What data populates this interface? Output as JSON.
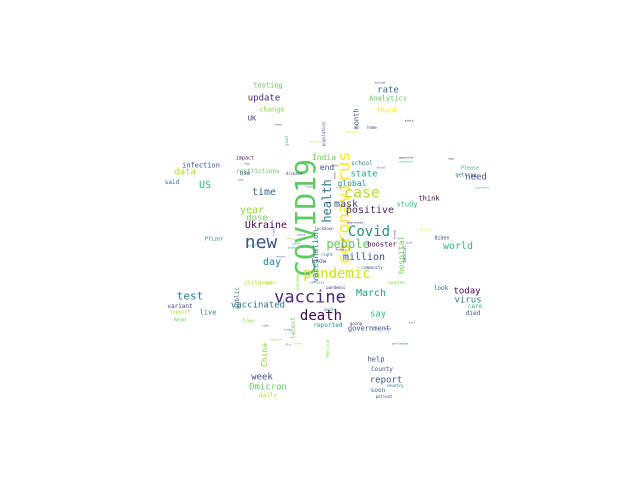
{
  "palette": {
    "purple": "#482878",
    "dark_purple": "#440154",
    "blue": "#3b528b",
    "teal": "#21918c",
    "teal_light": "#2a788e",
    "green": "#35b779",
    "lime": "#90d743",
    "yellow": "#fde725",
    "olive": "#b5de2b"
  },
  "words": [
    {
      "text": "COVID19",
      "color": "#5ec962",
      "rot": 270
    },
    {
      "text": "new",
      "color": "#3b528b",
      "rot": 0
    },
    {
      "text": "vaccine",
      "color": "#482878",
      "rot": 0
    },
    {
      "text": "coronavirus",
      "color": "#fde725",
      "rot": 270
    },
    {
      "text": "case",
      "color": "#b5de2b",
      "rot": 0
    },
    {
      "text": "Covid",
      "color": "#21918c",
      "rot": 0
    },
    {
      "text": "pandemic",
      "color": "#d0e11c",
      "rot": 0
    },
    {
      "text": "death",
      "color": "#440154",
      "rot": 0
    },
    {
      "text": "people",
      "color": "#5ec962",
      "rot": 0
    },
    {
      "text": "health",
      "color": "#2a788e",
      "rot": 270
    },
    {
      "text": "mask",
      "color": "#3e4989",
      "rot": 0
    },
    {
      "text": "Ukraine",
      "color": "#440154",
      "rot": 0
    },
    {
      "text": "positive",
      "color": "#482878",
      "rot": 0
    },
    {
      "text": "time",
      "color": "#31688e",
      "rot": 0
    },
    {
      "text": "day",
      "color": "#26828e",
      "rot": 0
    },
    {
      "text": "March",
      "color": "#1f9e89",
      "rot": 0
    },
    {
      "text": "test",
      "color": "#26828e",
      "rot": 0
    },
    {
      "text": "million",
      "color": "#3b528b",
      "rot": 0
    },
    {
      "text": "world",
      "color": "#35b779",
      "rot": 0
    },
    {
      "text": "today",
      "color": "#440154",
      "rot": 0
    },
    {
      "text": "virus",
      "color": "#2a788e",
      "rot": 0
    },
    {
      "text": "year",
      "color": "#90d743",
      "rot": 0
    },
    {
      "text": "dose",
      "color": "#6ece58",
      "rot": 0
    },
    {
      "text": "state",
      "color": "#22a884",
      "rot": 0
    },
    {
      "text": "rate",
      "color": "#31688e",
      "rot": 0
    },
    {
      "text": "update",
      "color": "#482878",
      "rot": 0
    },
    {
      "text": "US",
      "color": "#35b779",
      "rot": 0
    },
    {
      "text": "data",
      "color": "#b5de2b",
      "rot": 0
    },
    {
      "text": "vaccination",
      "color": "#2a788e",
      "rot": 270
    },
    {
      "text": "vaccinated",
      "color": "#2a788e",
      "rot": 0
    },
    {
      "text": "week",
      "color": "#3e4989",
      "rot": 0
    },
    {
      "text": "Omicron",
      "color": "#5ec962",
      "rot": 0
    },
    {
      "text": "China",
      "color": "#90d743",
      "rot": 270
    },
    {
      "text": "need",
      "color": "#3b528b",
      "rot": 0
    },
    {
      "text": "report",
      "color": "#3b528b",
      "rot": 0
    },
    {
      "text": "say",
      "color": "#35b779",
      "rot": 0
    },
    {
      "text": "government",
      "color": "#3e4989",
      "rot": 0
    },
    {
      "text": "booster",
      "color": "#440154",
      "rot": 0
    },
    {
      "text": "hospital",
      "color": "#6ece58",
      "rot": 270
    },
    {
      "text": "global",
      "color": "#21918c",
      "rot": 0
    },
    {
      "text": "end",
      "color": "#3b528b",
      "rot": 0
    },
    {
      "text": "India",
      "color": "#6ece58",
      "rot": 0
    },
    {
      "text": "testing",
      "color": "#6ece58",
      "rot": 0
    },
    {
      "text": "Analytics",
      "color": "#5ec962",
      "rot": 0
    },
    {
      "text": "Thank",
      "color": "#fde725",
      "rot": 0
    },
    {
      "text": "change",
      "color": "#90d743",
      "rot": 0
    },
    {
      "text": "UK",
      "color": "#482878",
      "rot": 0
    },
    {
      "text": "month",
      "color": "#3b528b",
      "rot": 270
    },
    {
      "text": "school",
      "color": "#21918c",
      "rot": 0
    },
    {
      "text": "infection",
      "color": "#3b528b",
      "rot": 0
    },
    {
      "text": "said",
      "color": "#31688e",
      "rot": 0
    },
    {
      "text": "restrictions",
      "color": "#5ec962",
      "rot": 0
    },
    {
      "text": "use",
      "color": "#3e4989",
      "rot": 0
    },
    {
      "text": "study",
      "color": "#35b779",
      "rot": 0
    },
    {
      "text": "think",
      "color": "#440154",
      "rot": 0
    },
    {
      "text": "live",
      "color": "#26828e",
      "rot": 0
    },
    {
      "text": "variant",
      "color": "#3e4989",
      "rot": 0
    },
    {
      "text": "children",
      "color": "#b5de2b",
      "rot": 0
    },
    {
      "text": "latest",
      "color": "#6ece58",
      "rot": 270
    },
    {
      "text": "reported",
      "color": "#21918c",
      "rot": 0
    },
    {
      "text": "look",
      "color": "#31688e",
      "rot": 0
    },
    {
      "text": "care",
      "color": "#35b779",
      "rot": 0
    },
    {
      "text": "died",
      "color": "#3b528b",
      "rot": 0
    },
    {
      "text": "help",
      "color": "#3e4989",
      "rot": 0
    },
    {
      "text": "County",
      "color": "#3b528b",
      "rot": 0
    },
    {
      "text": "soon",
      "color": "#31688e",
      "rot": 0
    },
    {
      "text": "daily",
      "color": "#b5de2b",
      "rot": 0
    },
    {
      "text": "know",
      "color": "#3e4989",
      "rot": 0
    },
    {
      "text": "public",
      "color": "#2a788e",
      "rot": 270
    },
    {
      "text": "Pfizer",
      "color": "#2a788e",
      "rot": 0
    },
    {
      "text": "Biden",
      "color": "#3b528b",
      "rot": 0
    },
    {
      "text": "Please",
      "color": "#35b779",
      "rot": 0
    },
    {
      "text": "getting",
      "color": "#31688e",
      "rot": 0
    },
    {
      "text": "support",
      "color": "#b5de2b",
      "rot": 0
    },
    {
      "text": "free",
      "color": "#90d743",
      "rot": 0
    },
    {
      "text": "Read",
      "color": "#6ece58",
      "rot": 0
    },
    {
      "text": "impact",
      "color": "#440154",
      "rot": 0
    },
    {
      "text": "population",
      "color": "#3e4989",
      "rot": 270
    },
    {
      "text": "community",
      "color": "#3b528b",
      "rot": 0
    },
    {
      "text": "going",
      "color": "#482878",
      "rot": 0
    },
    {
      "text": "American",
      "color": "#90d743",
      "rot": 270
    },
    {
      "text": "patient",
      "color": "#3b528b",
      "rot": 0
    },
    {
      "text": "country",
      "color": "#2a788e",
      "rot": 0
    },
    {
      "text": "home",
      "color": "#3e4989",
      "rot": 0
    },
    {
      "text": "disease",
      "color": "#3e4989",
      "rot": 0
    },
    {
      "text": "number",
      "color": "#b5de2b",
      "rot": 0
    },
    {
      "text": "right",
      "color": "#2a788e",
      "rot": 0
    },
    {
      "text": "medical",
      "color": "#31688e",
      "rot": 270
    },
    {
      "text": "symptom",
      "color": "#90d743",
      "rot": 0
    },
    {
      "text": "pandemic",
      "color": "#482878",
      "rot": 0
    },
    {
      "text": "pandemic",
      "color": "#90d743",
      "rot": 270
    },
    {
      "text": "good",
      "color": "#35b779",
      "rot": 270
    },
    {
      "text": "war",
      "color": "#3e4989",
      "rot": 0
    },
    {
      "text": "team",
      "color": "#31688e",
      "rot": 0
    },
    {
      "text": "system",
      "color": "#3b528b",
      "rot": 0
    },
    {
      "text": "start",
      "color": "#440154",
      "rot": 0
    },
    {
      "text": "question",
      "color": "#440154",
      "rot": 0
    },
    {
      "text": "research",
      "color": "#35b779",
      "rot": 0
    },
    {
      "text": "key",
      "color": "#3b528b",
      "rot": 0
    },
    {
      "text": "age",
      "color": "#3e4989",
      "rot": 0
    },
    {
      "text": "recovery",
      "color": "#35b779",
      "rot": 0
    },
    {
      "text": "spread",
      "color": "#fde725",
      "rot": 0
    },
    {
      "text": "lockdown",
      "color": "#3b528b",
      "rot": 0
    },
    {
      "text": "risk",
      "color": "#3e4989",
      "rot": 0
    },
    {
      "text": "link",
      "color": "#3b528b",
      "rot": 0
    },
    {
      "text": "official",
      "color": "#3e4989",
      "rot": 0
    },
    {
      "text": "masks",
      "color": "#21918c",
      "rot": 0
    },
    {
      "text": "deaths",
      "color": "#90d743",
      "rot": 0
    },
    {
      "text": "life",
      "color": "#3e4989",
      "rot": 0
    },
    {
      "text": "cases",
      "color": "#b5de2b",
      "rot": 0
    },
    {
      "text": "cause",
      "color": "#3b528b",
      "rot": 0
    },
    {
      "text": "found",
      "color": "#440154",
      "rot": 270
    },
    {
      "text": "food",
      "color": "#31688e",
      "rot": 0
    },
    {
      "text": "mandate",
      "color": "#fde725",
      "rot": 0
    },
    {
      "text": "trial",
      "color": "#3e4989",
      "rot": 0
    },
    {
      "text": "vaccine",
      "color": "#482878",
      "rot": 270
    },
    {
      "text": "Russia",
      "color": "#3e4989",
      "rot": 0
    },
    {
      "text": "awareness",
      "color": "#440154",
      "rot": 0
    },
    {
      "text": "event",
      "color": "#31688e",
      "rot": 0
    },
    {
      "text": "work",
      "color": "#90d743",
      "rot": 0
    },
    {
      "text": "flu",
      "color": "#3e4989",
      "rot": 0
    },
    {
      "text": "kid",
      "color": "#482878",
      "rot": 0
    },
    {
      "text": "shot",
      "color": "#3e4989",
      "rot": 0
    },
    {
      "text": "worldwide",
      "color": "#31688e",
      "rot": 0
    },
    {
      "text": "concern",
      "color": "#b5de2b",
      "rot": 0
    },
    {
      "text": "high",
      "color": "#3b528b",
      "rot": 270
    },
    {
      "text": "safe",
      "color": "#21918c",
      "rot": 0
    },
    {
      "text": "plan",
      "color": "#31688e",
      "rot": 0
    },
    {
      "text": "staff",
      "color": "#21918c",
      "rot": 0
    },
    {
      "text": "lead",
      "color": "#482878",
      "rot": 270
    },
    {
      "text": "late",
      "color": "#b5de2b",
      "rot": 0
    },
    {
      "text": "toll",
      "color": "#3b528b",
      "rot": 0
    },
    {
      "text": "effect",
      "color": "#31688e",
      "rot": 270
    }
  ]
}
